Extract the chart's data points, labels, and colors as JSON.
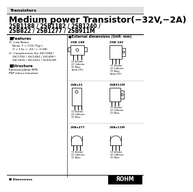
{
  "title_line1": "Medium power Transistor(−32V,−2A)",
  "subtitle": "2SB1188 / 2SB1182 / 2SB1240 /",
  "subtitle2": "2SB822 / 2SB1277 / 2SB911M",
  "header": "Transistors",
  "section1": "■Features",
  "feat1": "1)  Low Noise",
  "feat1a": "    Noise: F = 0.5V (Typ.)",
  "feat1b": "    (f = 1 kz = -24 / = -0.2A)",
  "feat2": "2)  Complements the 2SC1188 /",
  "feat2a": "    2SC1782 / 2SC1482 / 2SC499 /",
  "feat2b": "    2SC1655 / 2SC1911 / 3CS311M",
  "section2": "■Structure",
  "struct1": "Epitaxial planar NPN",
  "struct2": "PNP silicon transistor",
  "dim_title": "■External dimensions (Unit: mm)",
  "pkg1_label": "2SB 188",
  "pkg2_label": "2SB 182",
  "pkg3_label": "2SBx22",
  "pkg4_label": "2SB911M",
  "pkg5_label": "2SBx277",
  "pkg6_label": "2SBx11M",
  "pin1": "(1) Emitter",
  "pin2": "(2) Collector",
  "pin3": "(3) Base",
  "white": "#ffffff",
  "black": "#000000",
  "header_gray": "#e0e0e0"
}
